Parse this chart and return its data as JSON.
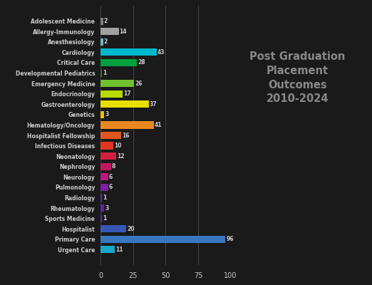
{
  "categories": [
    "Adolescent Medicine",
    "Allergy-Immunology",
    "Anesthesiology",
    "Cardiology",
    "Critical Care",
    "Developmental Pediatrics",
    "Emergency Medicine",
    "Endocrinology",
    "Gastroenterology",
    "Genetics",
    "Hematology/Oncology",
    "Hospitalist Fellowship",
    "Infectious Diseases",
    "Neonatology",
    "Nephrology",
    "Neurology",
    "Pulmonology",
    "Radiology",
    "Rheumatology",
    "Sports Medicine",
    "Hospitalist",
    "Primary Care",
    "Urgent Care"
  ],
  "values": [
    2,
    14,
    2,
    43,
    28,
    1,
    26,
    17,
    37,
    3,
    41,
    16,
    10,
    12,
    8,
    6,
    6,
    1,
    3,
    1,
    20,
    96,
    11
  ],
  "colors": [
    "#808080",
    "#a0a0a0",
    "#70b8c0",
    "#00b8cc",
    "#00a040",
    "#3a7030",
    "#70c030",
    "#b8d800",
    "#e8e000",
    "#e8c000",
    "#e88820",
    "#e05820",
    "#e03820",
    "#d02040",
    "#c01860",
    "#b81880",
    "#7820a0",
    "#5828a8",
    "#5828a8",
    "#5828a8",
    "#3858b8",
    "#3878c0",
    "#18a8cc"
  ],
  "title": "Post Graduation\nPlacement\nOutcomes\n2010-2024",
  "xlim": [
    0,
    100
  ],
  "xticks": [
    0,
    25,
    50,
    75,
    100
  ],
  "background_color": "#1a1a1a",
  "text_color": "#cccccc",
  "title_color": "#888888",
  "bar_height": 0.7,
  "label_fontsize": 5.5,
  "value_fontsize": 5.5,
  "tick_fontsize": 7,
  "title_fontsize": 10.5
}
